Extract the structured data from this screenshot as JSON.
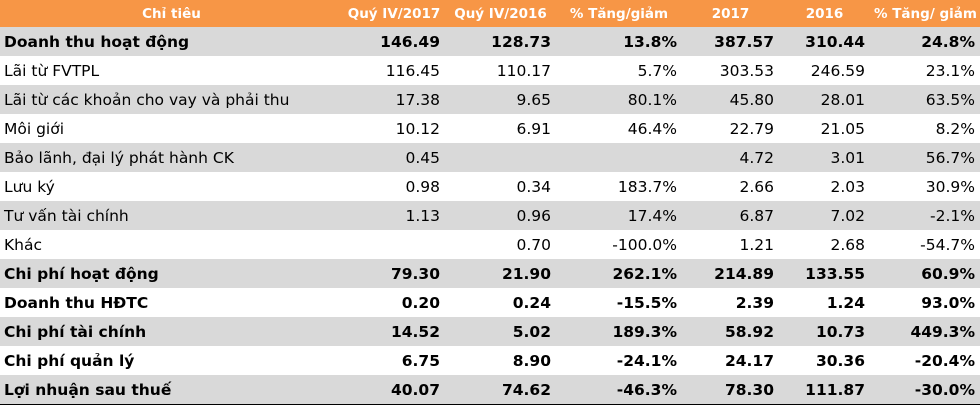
{
  "colors": {
    "header_bg": "#f79646",
    "header_text": "#ffffff",
    "row_shaded": "#d9d9d9",
    "row_plain": "#ffffff"
  },
  "table": {
    "headers": [
      "Chỉ tiêu",
      "Quý IV/2017",
      "Quý IV/2016",
      "% Tăng/giảm",
      "2017",
      "2016",
      "% Tăng/ giảm"
    ],
    "rows": [
      {
        "label": "Doanh thu hoạt động",
        "q4_2017": "146.49",
        "q4_2016": "128.73",
        "q_change": "13.8%",
        "y2017": "387.57",
        "y2016": "310.44",
        "y_change": "24.8%",
        "bold": true,
        "shaded": true
      },
      {
        "label": "Lãi từ FVTPL",
        "q4_2017": "116.45",
        "q4_2016": "110.17",
        "q_change": "5.7%",
        "y2017": "303.53",
        "y2016": "246.59",
        "y_change": "23.1%",
        "bold": false,
        "shaded": false
      },
      {
        "label": "Lãi từ các khoản cho vay và phải thu",
        "q4_2017": "17.38",
        "q4_2016": "9.65",
        "q_change": "80.1%",
        "y2017": "45.80",
        "y2016": "28.01",
        "y_change": "63.5%",
        "bold": false,
        "shaded": true
      },
      {
        "label": "Môi giới",
        "q4_2017": "10.12",
        "q4_2016": "6.91",
        "q_change": "46.4%",
        "y2017": "22.79",
        "y2016": "21.05",
        "y_change": "8.2%",
        "bold": false,
        "shaded": false
      },
      {
        "label": "Bảo lãnh, đại lý phát hành CK",
        "q4_2017": "0.45",
        "q4_2016": "",
        "q_change": "",
        "y2017": "4.72",
        "y2016": "3.01",
        "y_change": "56.7%",
        "bold": false,
        "shaded": true
      },
      {
        "label": "Lưu ký",
        "q4_2017": "0.98",
        "q4_2016": "0.34",
        "q_change": "183.7%",
        "y2017": "2.66",
        "y2016": "2.03",
        "y_change": "30.9%",
        "bold": false,
        "shaded": false
      },
      {
        "label": "Tư vấn tài chính",
        "q4_2017": "1.13",
        "q4_2016": "0.96",
        "q_change": "17.4%",
        "y2017": "6.87",
        "y2016": "7.02",
        "y_change": "-2.1%",
        "bold": false,
        "shaded": true
      },
      {
        "label": "Khác",
        "q4_2017": "",
        "q4_2016": "0.70",
        "q_change": "-100.0%",
        "y2017": "1.21",
        "y2016": "2.68",
        "y_change": "-54.7%",
        "bold": false,
        "shaded": false
      },
      {
        "label": "Chi phí hoạt động",
        "q4_2017": "79.30",
        "q4_2016": "21.90",
        "q_change": "262.1%",
        "y2017": "214.89",
        "y2016": "133.55",
        "y_change": "60.9%",
        "bold": true,
        "shaded": true
      },
      {
        "label": "Doanh thu HĐTC",
        "q4_2017": "0.20",
        "q4_2016": "0.24",
        "q_change": "-15.5%",
        "y2017": "2.39",
        "y2016": "1.24",
        "y_change": "93.0%",
        "bold": true,
        "shaded": false
      },
      {
        "label": "Chi phí tài chính",
        "q4_2017": "14.52",
        "q4_2016": "5.02",
        "q_change": "189.3%",
        "y2017": "58.92",
        "y2016": "10.73",
        "y_change": "449.3%",
        "bold": true,
        "shaded": true
      },
      {
        "label": "Chi phí quản lý",
        "q4_2017": "6.75",
        "q4_2016": "8.90",
        "q_change": "-24.1%",
        "y2017": "24.17",
        "y2016": "30.36",
        "y_change": "-20.4%",
        "bold": true,
        "shaded": false
      },
      {
        "label": "Lợi nhuận sau thuế",
        "q4_2017": "40.07",
        "q4_2016": "74.62",
        "q_change": "-46.3%",
        "y2017": "78.30",
        "y2016": "111.87",
        "y_change": "-30.0%",
        "bold": true,
        "shaded": true
      }
    ]
  }
}
